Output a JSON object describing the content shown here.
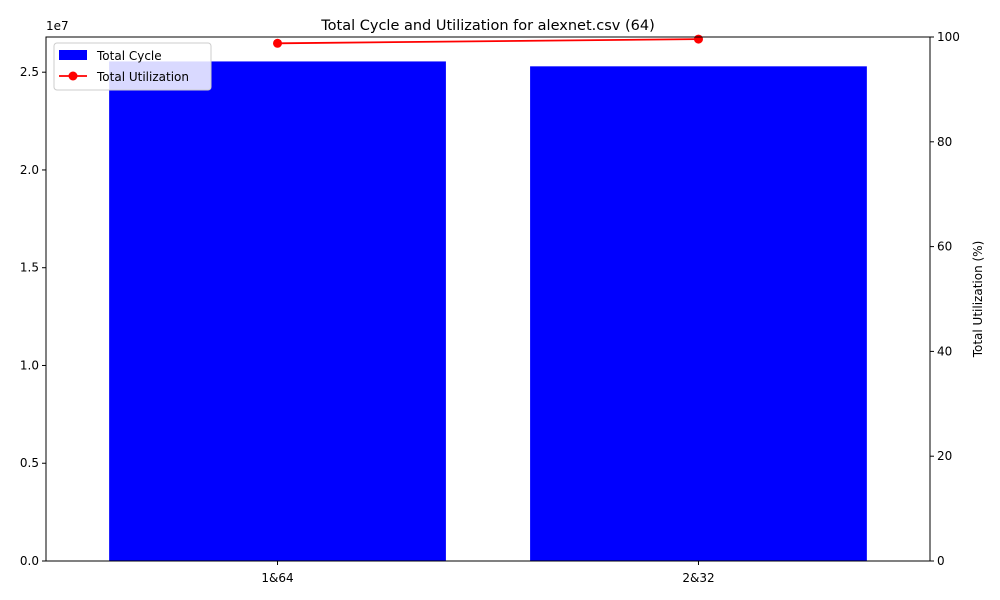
{
  "chart_data": {
    "type": "bar+line",
    "title": "Total Cycle and Utilization for alexnet.csv (64)",
    "categories": [
      "1&64",
      "2&32"
    ],
    "xlabel": "",
    "bar_series": {
      "name": "Total Cycle",
      "values": [
        25550000,
        25300000
      ],
      "color": "#0000ff"
    },
    "line_series": {
      "name": "Total Utilization",
      "values": [
        98.8,
        99.6
      ],
      "color": "#ff0000"
    },
    "y_left": {
      "label": "",
      "scale_note": "1e7",
      "lim": [
        0,
        26800000
      ],
      "ticks": [
        0,
        5000000,
        10000000,
        15000000,
        20000000,
        25000000
      ],
      "tick_labels": [
        "0.0",
        "0.5",
        "1.0",
        "1.5",
        "2.0",
        "2.5"
      ]
    },
    "y_right": {
      "label": "Total Utilization (%)",
      "lim": [
        0,
        100
      ],
      "ticks": [
        0,
        20,
        40,
        60,
        80,
        100
      ],
      "tick_labels": [
        "0",
        "20",
        "40",
        "60",
        "80",
        "100"
      ]
    },
    "grid": false,
    "legend_position": "top-left"
  }
}
